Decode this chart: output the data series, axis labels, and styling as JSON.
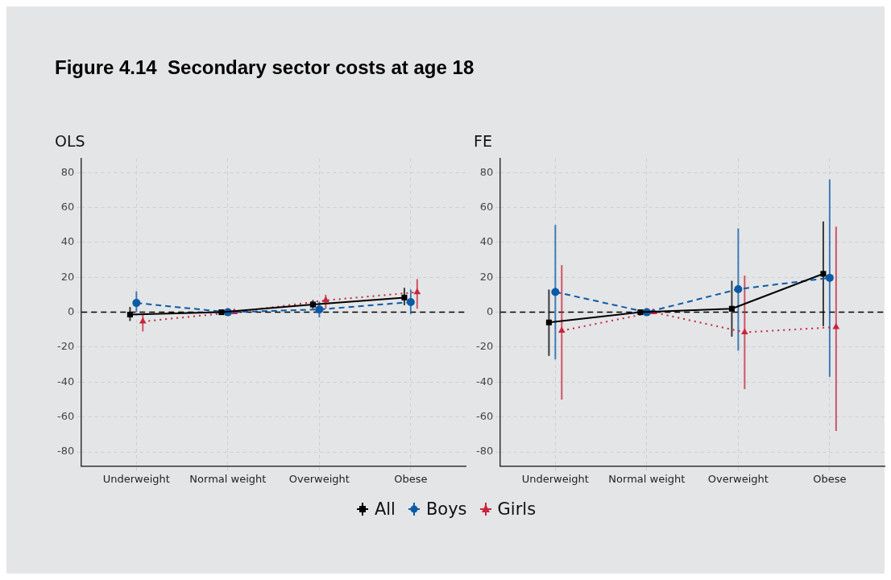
{
  "chart_data": [
    {
      "type": "line",
      "title": "OLS",
      "annotations": [
        "Figure 4.14  Secondary sector costs at age 18"
      ],
      "categories": [
        "Underweight",
        "Normal weight",
        "Overweight",
        "Obese"
      ],
      "ylim": [
        -88,
        88
      ],
      "yticks": [
        -80,
        -60,
        -40,
        -20,
        0,
        20,
        40,
        60,
        80
      ],
      "grid": true,
      "legend": "bottom",
      "ref_lines": [
        {
          "axis": "y",
          "value": 0,
          "color": "#000000",
          "line_style": "dashed"
        }
      ],
      "series": [
        {
          "name": "All",
          "color": "#000000",
          "marker": "square",
          "line_style": "solid",
          "values": [
            -1.3,
            0,
            4.4,
            8.4
          ],
          "errors": [
            [
              -5,
              3
            ],
            null,
            [
              2,
              7
            ],
            [
              4,
              14
            ]
          ]
        },
        {
          "name": "Boys",
          "color": "#0c5aa6",
          "marker": "circle",
          "line_style": "dashed",
          "values": [
            5.3,
            0,
            1.6,
            5.8
          ],
          "errors": [
            [
              0,
              12
            ],
            null,
            [
              -3,
              6
            ],
            [
              -1,
              13
            ]
          ]
        },
        {
          "name": "Girls",
          "color": "#c8243a",
          "marker": "triangle",
          "line_style": "dotted",
          "values": [
            -5.3,
            0,
            6.8,
            11.5
          ],
          "errors": [
            [
              -11,
              -1
            ],
            null,
            [
              2,
              10
            ],
            [
              2,
              19
            ]
          ]
        }
      ]
    },
    {
      "type": "line",
      "title": "FE",
      "categories": [
        "Underweight",
        "Normal weight",
        "Overweight",
        "Obese"
      ],
      "ylim": [
        -88,
        88
      ],
      "yticks": [
        -80,
        -60,
        -40,
        -20,
        0,
        20,
        40,
        60,
        80
      ],
      "grid": true,
      "legend": "bottom",
      "ref_lines": [
        {
          "axis": "y",
          "value": 0,
          "color": "#000000",
          "line_style": "dashed"
        }
      ],
      "series": [
        {
          "name": "All",
          "color": "#000000",
          "marker": "square",
          "line_style": "solid",
          "values": [
            -5.8,
            0,
            2,
            22
          ],
          "errors": [
            [
              -25,
              13
            ],
            null,
            [
              -14,
              18
            ],
            [
              -8,
              52
            ]
          ]
        },
        {
          "name": "Boys",
          "color": "#0c5aa6",
          "marker": "circle",
          "line_style": "dashed",
          "values": [
            11.6,
            0,
            13.2,
            19.7
          ],
          "errors": [
            [
              -27,
              50
            ],
            null,
            [
              -22,
              48
            ],
            [
              -37,
              76
            ]
          ]
        },
        {
          "name": "Girls",
          "color": "#c8243a",
          "marker": "triangle",
          "line_style": "dotted",
          "values": [
            -10.6,
            0,
            -11.5,
            -8.5
          ],
          "errors": [
            [
              -50,
              27
            ],
            null,
            [
              -44,
              21
            ],
            [
              -68,
              49
            ]
          ]
        }
      ]
    }
  ]
}
